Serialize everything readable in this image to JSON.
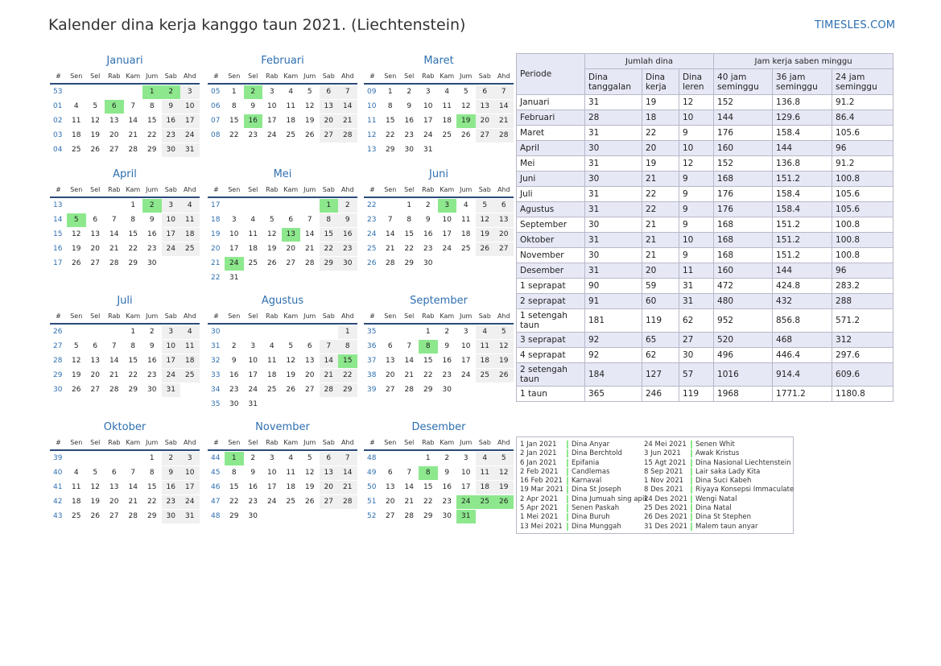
{
  "header": {
    "title": "Kalender dina kerja kanggo taun 2021. (Liechtenstein)",
    "site": "TIMESLES.COM"
  },
  "weekday_headers": [
    "#",
    "Sen",
    "Sel",
    "Rab",
    "Kam",
    "Jum",
    "Sab",
    "Ahd"
  ],
  "months": [
    {
      "name": "Januari",
      "weeks": [
        [
          "53",
          "",
          "",
          "",
          "",
          "1",
          "2",
          "3"
        ],
        [
          "01",
          "4",
          "5",
          "6",
          "7",
          "8",
          "9",
          "10"
        ],
        [
          "02",
          "11",
          "12",
          "13",
          "14",
          "15",
          "16",
          "17"
        ],
        [
          "03",
          "18",
          "19",
          "20",
          "21",
          "22",
          "23",
          "24"
        ],
        [
          "04",
          "25",
          "26",
          "27",
          "28",
          "29",
          "30",
          "31"
        ]
      ],
      "holidays": [
        "1",
        "2",
        "6"
      ]
    },
    {
      "name": "Februari",
      "weeks": [
        [
          "05",
          "1",
          "2",
          "3",
          "4",
          "5",
          "6",
          "7"
        ],
        [
          "06",
          "8",
          "9",
          "10",
          "11",
          "12",
          "13",
          "14"
        ],
        [
          "07",
          "15",
          "16",
          "17",
          "18",
          "19",
          "20",
          "21"
        ],
        [
          "08",
          "22",
          "23",
          "24",
          "25",
          "26",
          "27",
          "28"
        ]
      ],
      "holidays": [
        "2",
        "16"
      ]
    },
    {
      "name": "Maret",
      "weeks": [
        [
          "09",
          "1",
          "2",
          "3",
          "4",
          "5",
          "6",
          "7"
        ],
        [
          "10",
          "8",
          "9",
          "10",
          "11",
          "12",
          "13",
          "14"
        ],
        [
          "11",
          "15",
          "16",
          "17",
          "18",
          "19",
          "20",
          "21"
        ],
        [
          "12",
          "22",
          "23",
          "24",
          "25",
          "26",
          "27",
          "28"
        ],
        [
          "13",
          "29",
          "30",
          "31",
          "",
          "",
          "",
          ""
        ]
      ],
      "holidays": [
        "19"
      ]
    },
    {
      "name": "April",
      "weeks": [
        [
          "13",
          "",
          "",
          "",
          "1",
          "2",
          "3",
          "4"
        ],
        [
          "14",
          "5",
          "6",
          "7",
          "8",
          "9",
          "10",
          "11"
        ],
        [
          "15",
          "12",
          "13",
          "14",
          "15",
          "16",
          "17",
          "18"
        ],
        [
          "16",
          "19",
          "20",
          "21",
          "22",
          "23",
          "24",
          "25"
        ],
        [
          "17",
          "26",
          "27",
          "28",
          "29",
          "30",
          "",
          ""
        ]
      ],
      "holidays": [
        "2",
        "5"
      ]
    },
    {
      "name": "Mei",
      "weeks": [
        [
          "17",
          "",
          "",
          "",
          "",
          "",
          "1",
          "2"
        ],
        [
          "18",
          "3",
          "4",
          "5",
          "6",
          "7",
          "8",
          "9"
        ],
        [
          "19",
          "10",
          "11",
          "12",
          "13",
          "14",
          "15",
          "16"
        ],
        [
          "20",
          "17",
          "18",
          "19",
          "20",
          "21",
          "22",
          "23"
        ],
        [
          "21",
          "24",
          "25",
          "26",
          "27",
          "28",
          "29",
          "30"
        ],
        [
          "22",
          "31",
          "",
          "",
          "",
          "",
          "",
          ""
        ]
      ],
      "holidays": [
        "1",
        "13",
        "24"
      ]
    },
    {
      "name": "Juni",
      "weeks": [
        [
          "22",
          "",
          "1",
          "2",
          "3",
          "4",
          "5",
          "6"
        ],
        [
          "23",
          "7",
          "8",
          "9",
          "10",
          "11",
          "12",
          "13"
        ],
        [
          "24",
          "14",
          "15",
          "16",
          "17",
          "18",
          "19",
          "20"
        ],
        [
          "25",
          "21",
          "22",
          "23",
          "24",
          "25",
          "26",
          "27"
        ],
        [
          "26",
          "28",
          "29",
          "30",
          "",
          "",
          "",
          ""
        ]
      ],
      "holidays": [
        "3"
      ]
    },
    {
      "name": "Juli",
      "weeks": [
        [
          "26",
          "",
          "",
          "",
          "1",
          "2",
          "3",
          "4"
        ],
        [
          "27",
          "5",
          "6",
          "7",
          "8",
          "9",
          "10",
          "11"
        ],
        [
          "28",
          "12",
          "13",
          "14",
          "15",
          "16",
          "17",
          "18"
        ],
        [
          "29",
          "19",
          "20",
          "21",
          "22",
          "23",
          "24",
          "25"
        ],
        [
          "30",
          "26",
          "27",
          "28",
          "29",
          "30",
          "31",
          ""
        ]
      ],
      "holidays": []
    },
    {
      "name": "Agustus",
      "weeks": [
        [
          "30",
          "",
          "",
          "",
          "",
          "",
          "",
          "1"
        ],
        [
          "31",
          "2",
          "3",
          "4",
          "5",
          "6",
          "7",
          "8"
        ],
        [
          "32",
          "9",
          "10",
          "11",
          "12",
          "13",
          "14",
          "15"
        ],
        [
          "33",
          "16",
          "17",
          "18",
          "19",
          "20",
          "21",
          "22"
        ],
        [
          "34",
          "23",
          "24",
          "25",
          "26",
          "27",
          "28",
          "29"
        ],
        [
          "35",
          "30",
          "31",
          "",
          "",
          "",
          "",
          ""
        ]
      ],
      "holidays": [
        "15"
      ]
    },
    {
      "name": "September",
      "weeks": [
        [
          "35",
          "",
          "",
          "1",
          "2",
          "3",
          "4",
          "5"
        ],
        [
          "36",
          "6",
          "7",
          "8",
          "9",
          "10",
          "11",
          "12"
        ],
        [
          "37",
          "13",
          "14",
          "15",
          "16",
          "17",
          "18",
          "19"
        ],
        [
          "38",
          "20",
          "21",
          "22",
          "23",
          "24",
          "25",
          "26"
        ],
        [
          "39",
          "27",
          "28",
          "29",
          "30",
          "",
          "",
          ""
        ]
      ],
      "holidays": [
        "8"
      ]
    },
    {
      "name": "Oktober",
      "weeks": [
        [
          "39",
          "",
          "",
          "",
          "",
          "1",
          "2",
          "3"
        ],
        [
          "40",
          "4",
          "5",
          "6",
          "7",
          "8",
          "9",
          "10"
        ],
        [
          "41",
          "11",
          "12",
          "13",
          "14",
          "15",
          "16",
          "17"
        ],
        [
          "42",
          "18",
          "19",
          "20",
          "21",
          "22",
          "23",
          "24"
        ],
        [
          "43",
          "25",
          "26",
          "27",
          "28",
          "29",
          "30",
          "31"
        ]
      ],
      "holidays": []
    },
    {
      "name": "November",
      "weeks": [
        [
          "44",
          "1",
          "2",
          "3",
          "4",
          "5",
          "6",
          "7"
        ],
        [
          "45",
          "8",
          "9",
          "10",
          "11",
          "12",
          "13",
          "14"
        ],
        [
          "46",
          "15",
          "16",
          "17",
          "18",
          "19",
          "20",
          "21"
        ],
        [
          "47",
          "22",
          "23",
          "24",
          "25",
          "26",
          "27",
          "28"
        ],
        [
          "48",
          "29",
          "30",
          "",
          "",
          "",
          "",
          ""
        ]
      ],
      "holidays": [
        "1"
      ]
    },
    {
      "name": "Desember",
      "weeks": [
        [
          "48",
          "",
          "",
          "1",
          "2",
          "3",
          "4",
          "5"
        ],
        [
          "49",
          "6",
          "7",
          "8",
          "9",
          "10",
          "11",
          "12"
        ],
        [
          "50",
          "13",
          "14",
          "15",
          "16",
          "17",
          "18",
          "19"
        ],
        [
          "51",
          "20",
          "21",
          "22",
          "23",
          "24",
          "25",
          "26"
        ],
        [
          "52",
          "27",
          "28",
          "29",
          "30",
          "31",
          "",
          ""
        ]
      ],
      "holidays": [
        "8",
        "24",
        "25",
        "26",
        "31"
      ]
    }
  ],
  "stats": {
    "period_label": "Periode",
    "days_group": "Jumlah dina",
    "hours_group": "Jam kerja saben minggu",
    "columns": [
      "Dina tanggalan",
      "Dina kerja",
      "Dina leren",
      "40 jam seminggu",
      "36 jam seminggu",
      "24 jam seminggu"
    ],
    "rows": [
      {
        "period": "Januari",
        "values": [
          "31",
          "19",
          "12",
          "152",
          "136.8",
          "91.2"
        ]
      },
      {
        "period": "Februari",
        "values": [
          "28",
          "18",
          "10",
          "144",
          "129.6",
          "86.4"
        ]
      },
      {
        "period": "Maret",
        "values": [
          "31",
          "22",
          "9",
          "176",
          "158.4",
          "105.6"
        ]
      },
      {
        "period": "April",
        "values": [
          "30",
          "20",
          "10",
          "160",
          "144",
          "96"
        ]
      },
      {
        "period": "Mei",
        "values": [
          "31",
          "19",
          "12",
          "152",
          "136.8",
          "91.2"
        ]
      },
      {
        "period": "Juni",
        "values": [
          "30",
          "21",
          "9",
          "168",
          "151.2",
          "100.8"
        ]
      },
      {
        "period": "Juli",
        "values": [
          "31",
          "22",
          "9",
          "176",
          "158.4",
          "105.6"
        ]
      },
      {
        "period": "Agustus",
        "values": [
          "31",
          "22",
          "9",
          "176",
          "158.4",
          "105.6"
        ]
      },
      {
        "period": "September",
        "values": [
          "30",
          "21",
          "9",
          "168",
          "151.2",
          "100.8"
        ]
      },
      {
        "period": "Oktober",
        "values": [
          "31",
          "21",
          "10",
          "168",
          "151.2",
          "100.8"
        ]
      },
      {
        "period": "November",
        "values": [
          "30",
          "21",
          "9",
          "168",
          "151.2",
          "100.8"
        ]
      },
      {
        "period": "Desember",
        "values": [
          "31",
          "20",
          "11",
          "160",
          "144",
          "96"
        ]
      },
      {
        "period": "1 seprapat",
        "values": [
          "90",
          "59",
          "31",
          "472",
          "424.8",
          "283.2"
        ]
      },
      {
        "period": "2 seprapat",
        "values": [
          "91",
          "60",
          "31",
          "480",
          "432",
          "288"
        ]
      },
      {
        "period": "1 setengah taun",
        "values": [
          "181",
          "119",
          "62",
          "952",
          "856.8",
          "571.2"
        ],
        "tall": true
      },
      {
        "period": "3 seprapat",
        "values": [
          "92",
          "65",
          "27",
          "520",
          "468",
          "312"
        ]
      },
      {
        "period": "4 seprapat",
        "values": [
          "92",
          "62",
          "30",
          "496",
          "446.4",
          "297.6"
        ]
      },
      {
        "period": "2 setengah taun",
        "values": [
          "184",
          "127",
          "57",
          "1016",
          "914.4",
          "609.6"
        ],
        "tall": true
      },
      {
        "period": "1 taun",
        "values": [
          "365",
          "246",
          "119",
          "1968",
          "1771.2",
          "1180.8"
        ]
      }
    ]
  },
  "holiday_list": [
    [
      {
        "date": "1 Jan 2021",
        "name": "Dina Anyar"
      },
      {
        "date": "2 Jan 2021",
        "name": "Dina Berchtold"
      },
      {
        "date": "6 Jan 2021",
        "name": "Epifania"
      },
      {
        "date": "2 Feb 2021",
        "name": "Candlemas"
      },
      {
        "date": "16 Feb 2021",
        "name": "Karnaval"
      },
      {
        "date": "19 Mar 2021",
        "name": "Dina St Joseph"
      },
      {
        "date": "2 Apr 2021",
        "name": "Dina Jumuah sing apik"
      },
      {
        "date": "5 Apr 2021",
        "name": "Senen Paskah"
      },
      {
        "date": "1 Mei 2021",
        "name": "Dina Buruh"
      },
      {
        "date": "13 Mei 2021",
        "name": "Dina Munggah"
      }
    ],
    [
      {
        "date": "24 Mei 2021",
        "name": "Senen Whit"
      },
      {
        "date": "3 Jun 2021",
        "name": "Awak Kristus"
      },
      {
        "date": "15 Agt 2021",
        "name": "Dina Nasional Liechtenstein"
      },
      {
        "date": "8 Sep 2021",
        "name": "Lair saka Lady Kita"
      },
      {
        "date": "1 Nov 2021",
        "name": "Dina Suci Kabeh"
      },
      {
        "date": "8 Des 2021",
        "name": "Riyaya Konsepsi Immaculate"
      },
      {
        "date": "24 Des 2021",
        "name": "Wengi Natal"
      },
      {
        "date": "25 Des 2021",
        "name": "Dina Natal"
      },
      {
        "date": "26 Des 2021",
        "name": "Dina St Stephen"
      },
      {
        "date": "31 Des 2021",
        "name": "Malem taun anyar"
      }
    ]
  ]
}
